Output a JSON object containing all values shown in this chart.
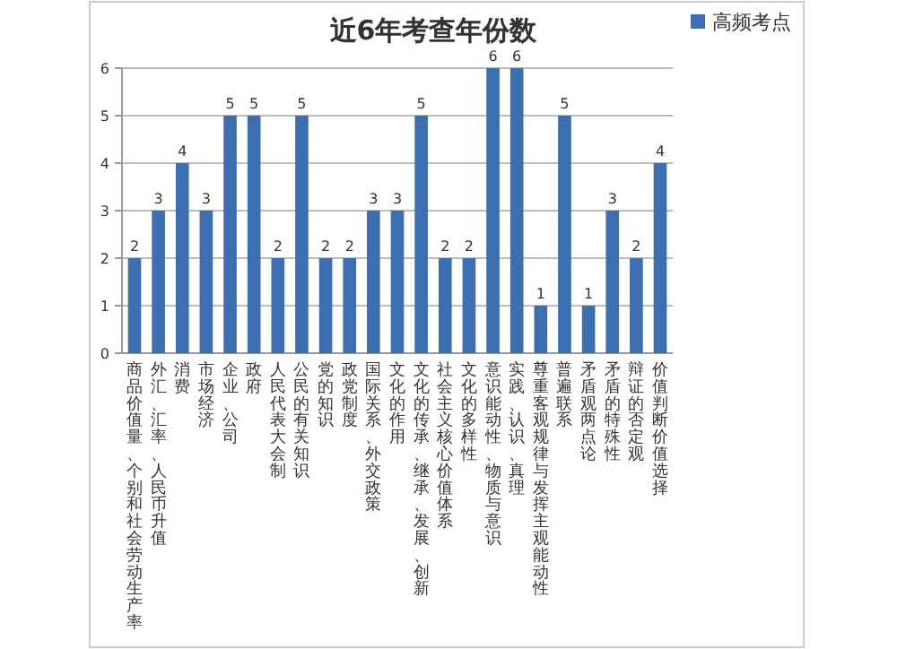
{
  "chart_data": {
    "type": "bar",
    "title": "近6年考查年份数",
    "categories": [
      "商品价值量、个别和社会劳动生产率",
      "外汇、汇率、人民币升值",
      "消费",
      "市场经济",
      "企业、公司",
      "政府",
      "人民代表大会制",
      "公民的有关知识",
      "党的知识",
      "政党制度",
      "国际关系、外交政策",
      "文化的作用",
      "文化的传承、继承、发展、创新",
      "社会主义核心价值体系",
      "文化的多样性",
      "意识能动性、物质与意识",
      "实践、认识、真理",
      "尊重客观规律与发挥主观能动性",
      "普遍联系",
      "矛盾观两点论",
      "矛盾的特殊性",
      "辩证的否定观",
      "价值判断价值选择"
    ],
    "series": [
      {
        "name": "高频考点",
        "color": "#3d6fb0",
        "values": [
          2,
          3,
          4,
          3,
          5,
          5,
          2,
          5,
          2,
          2,
          3,
          3,
          5,
          2,
          2,
          6,
          6,
          1,
          5,
          1,
          3,
          2,
          4
        ]
      }
    ],
    "ylim": [
      0,
      6
    ],
    "yticks": [
      0,
      1,
      2,
      3,
      4,
      5,
      6
    ],
    "grid": "y",
    "legend": "top right",
    "data_labels": true
  }
}
